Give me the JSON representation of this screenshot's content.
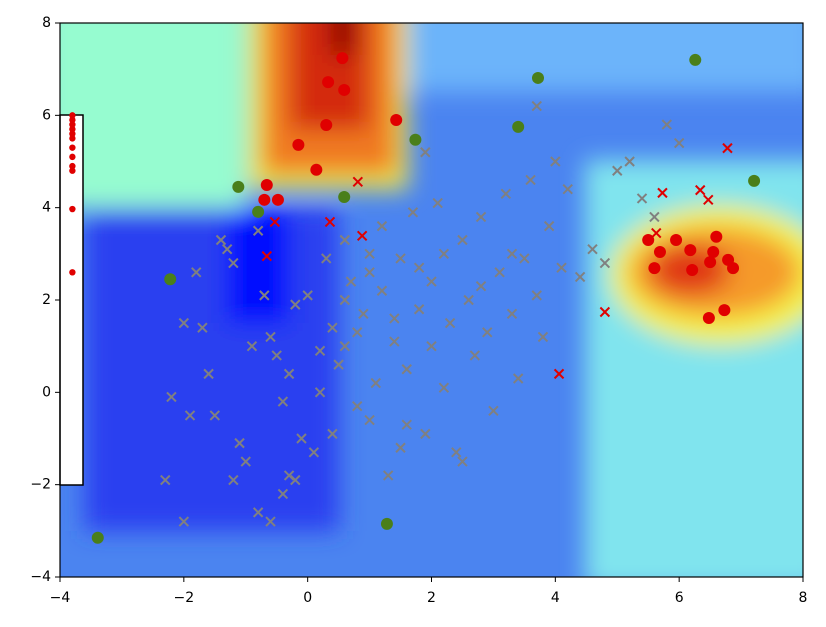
{
  "chart_data": {
    "type": "scatter",
    "xlim": [
      -4,
      8
    ],
    "ylim": [
      -4,
      8
    ],
    "xticks": [
      {
        "value": -4,
        "label": "−4"
      },
      {
        "value": -2,
        "label": "−2"
      },
      0,
      2,
      4,
      6,
      8
    ],
    "yticks": [
      {
        "value": -4,
        "label": "−4"
      },
      {
        "value": -2,
        "label": "−2"
      },
      0,
      2,
      4,
      6,
      8
    ],
    "series": [
      {
        "marker": "x",
        "color": "#808080",
        "x": [
          -2.3,
          -2.2,
          -2,
          -1.8,
          -1.7,
          -1.6,
          -1.5,
          -1.4,
          -1.3,
          -1.2,
          -1.1,
          -1.0,
          -0.9,
          -0.8,
          -0.7,
          -0.6,
          -0.5,
          -0.4,
          -0.3,
          -0.2,
          -0.1,
          0,
          0.1,
          0.2,
          0.3,
          0.4,
          0.5,
          0.6,
          0.7,
          0.8,
          0.9,
          1.0,
          1.1,
          1.2,
          1.3,
          1.4,
          1.5,
          1.6,
          1.7,
          1.8,
          1.9,
          2.0,
          2.1,
          2.2,
          2.3,
          2.4,
          2.5,
          2.6,
          2.7,
          2.8,
          2.9,
          3.0,
          3.1,
          3.2,
          3.3,
          3.4,
          3.5,
          3.6,
          3.7,
          3.8,
          3.9,
          4.0,
          4.1,
          4.2,
          4.4,
          4.6,
          4.8,
          5.0,
          5.2,
          5.4,
          5.6,
          5.8,
          6.0,
          3.7,
          1.9,
          1.0,
          0.6,
          0.2,
          -0.3,
          -0.8,
          -1.2,
          -0.6,
          -0.2,
          0.4,
          1.0,
          1.6,
          2.5,
          1.5,
          -1.9,
          -2.0,
          -0.4,
          0.6,
          1.2,
          1.8,
          2.2,
          2.8,
          3.3,
          0.8,
          1.4,
          2.0
        ],
        "y": [
          -1.9,
          -0.1,
          1.5,
          2.6,
          1.4,
          0.4,
          -0.5,
          3.3,
          3.1,
          2.8,
          -1.1,
          -1.5,
          1.0,
          3.5,
          2.1,
          1.2,
          0.8,
          -0.2,
          0.4,
          1.9,
          -1.0,
          2.1,
          -1.3,
          0.9,
          2.9,
          1.4,
          0.6,
          3.3,
          2.4,
          -0.3,
          1.7,
          2.6,
          0.2,
          3.6,
          -1.8,
          1.1,
          2.9,
          0.5,
          3.9,
          1.8,
          -0.9,
          2.4,
          4.1,
          0.1,
          1.5,
          -1.3,
          3.3,
          2.0,
          0.8,
          3.8,
          1.3,
          -0.4,
          2.6,
          4.3,
          1.7,
          0.3,
          2.9,
          4.6,
          2.1,
          1.2,
          3.6,
          5.0,
          2.7,
          4.4,
          2.5,
          3.1,
          2.8,
          4.8,
          5.0,
          4.2,
          3.8,
          5.8,
          5.4,
          6.2,
          5.2,
          3.0,
          1.0,
          0.0,
          -1.8,
          -2.6,
          -1.9,
          -2.8,
          -1.9,
          -0.9,
          -0.6,
          -0.7,
          -1.5,
          -1.2,
          -0.5,
          -2.8,
          -2.2,
          2.0,
          2.2,
          2.7,
          3.0,
          2.3,
          3.0,
          1.3,
          1.6,
          1.0
        ]
      },
      {
        "marker": "x",
        "color": "#e00000",
        "x": [
          0.81,
          -0.53,
          0.36,
          0.88,
          -0.66,
          5.73,
          6.34,
          6.47,
          6.78,
          5.63,
          4.8,
          4.06
        ],
        "y": [
          4.56,
          3.69,
          3.69,
          3.39,
          2.95,
          4.32,
          4.38,
          4.17,
          5.29,
          3.45,
          1.74,
          0.4
        ]
      },
      {
        "marker": "o",
        "color": "#e00000",
        "x": [
          0.56,
          0.33,
          0.59,
          0.3,
          1.43,
          -0.15,
          0.14,
          -0.66,
          -0.7,
          -0.48,
          5.5,
          5.95,
          5.69,
          6.18,
          6.6,
          6.55,
          5.6,
          6.21,
          6.5,
          6.79,
          6.87,
          6.73,
          6.48
        ],
        "y": [
          7.24,
          6.72,
          6.55,
          5.79,
          5.9,
          5.36,
          4.82,
          4.49,
          4.17,
          4.17,
          3.3,
          3.3,
          3.04,
          3.08,
          3.37,
          3.04,
          2.69,
          2.65,
          2.82,
          2.87,
          2.69,
          1.78,
          1.61
        ]
      },
      {
        "marker": "o",
        "color": "#4a7f1a",
        "x": [
          6.26,
          3.72,
          3.4,
          1.74,
          -1.12,
          -0.8,
          0.59,
          7.21,
          -2.22,
          -3.39,
          1.28
        ],
        "y": [
          7.2,
          6.81,
          5.75,
          5.47,
          4.45,
          3.91,
          4.23,
          4.58,
          2.45,
          -3.15,
          -2.85
        ]
      },
      {
        "marker": "dot",
        "color": "#e00000",
        "x": [
          -3.8,
          -3.8,
          -3.8,
          -3.8,
          -3.8,
          -3.8,
          -3.8,
          -3.8,
          -3.8,
          -3.8,
          -3.8,
          -3.8
        ],
        "y": [
          6.0,
          5.9,
          5.8,
          5.7,
          5.6,
          5.5,
          5.3,
          5.1,
          4.9,
          4.8,
          3.97,
          2.6
        ]
      }
    ]
  }
}
